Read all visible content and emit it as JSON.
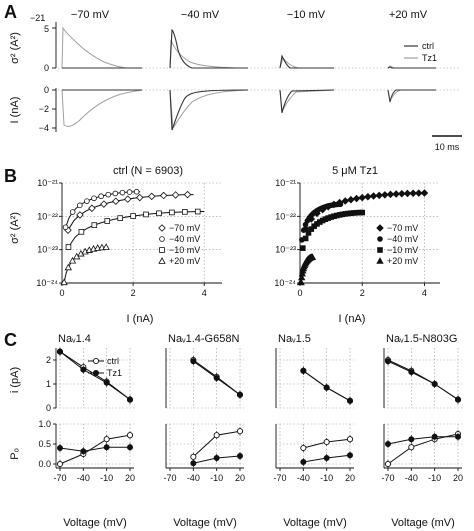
{
  "panel_labels": [
    "A",
    "B",
    "C"
  ],
  "panelA": {
    "voltages": [
      "−70 mV",
      "−40 mV",
      "−10 mV",
      "+20 mV"
    ],
    "ylabel_var": "σ² (A²)",
    "ylabel_cur": "I (nA)",
    "var_ticks": [
      "5",
      "0"
    ],
    "var_exp": "−21",
    "cur_ticks": [
      "0",
      "−2",
      "−4"
    ],
    "legend": [
      "ctrl",
      "Tz1"
    ],
    "scale_bar": "10 ms"
  },
  "panelB": {
    "left_title": "ctrl (N = 6903)",
    "right_title": "5 μM Tz1",
    "xlabel": "I (nA)",
    "ylabel": "σ² (A²)",
    "x_ticks": [
      "0",
      "2",
      "4"
    ],
    "y_ticks": [
      "10⁻²¹",
      "10⁻²²",
      "10⁻²³",
      "10⁻²⁴"
    ],
    "legend": [
      "−70 mV",
      "−40 mV",
      "−10 mV",
      "+20 mV"
    ]
  },
  "panelC": {
    "titles": [
      "Naᵥ1.4",
      "Naᵥ1.4-G658N",
      "Naᵥ1.5",
      "Naᵥ1.5-N803G"
    ],
    "ylabel_top": "i (pA)",
    "ylabel_bottom": "Pₒ",
    "xlabel": "Voltage (mV)",
    "x_ticks": [
      "-70",
      "-40",
      "-10",
      "20"
    ],
    "y_top_ticks": [
      "2",
      "1",
      "0"
    ],
    "y_bottom_ticks": [
      "1.0",
      "0.5",
      "0.0"
    ],
    "legend": [
      "ctrl",
      "Tz1"
    ]
  },
  "colors": {
    "ctrl_trace": "#333333",
    "tz1_trace": "#a0a0a0",
    "fit": "#111111"
  },
  "chart_data": [
    {
      "type": "line",
      "panel": "C",
      "xlabel": "Voltage (mV)",
      "x": [
        -70,
        -40,
        -10,
        20
      ],
      "subplots": [
        {
          "title": "Naᵥ1.4",
          "i_pA": {
            "ctrl": [
              2.35,
              1.7,
              1.1,
              0.35
            ],
            "tz1": [
              2.35,
              1.6,
              1.05,
              0.35
            ]
          },
          "Po": {
            "ctrl": [
              0.0,
              0.25,
              0.62,
              0.72
            ],
            "tz1": [
              0.4,
              0.32,
              0.42,
              0.42
            ]
          }
        },
        {
          "title": "Naᵥ1.4-G658N",
          "i_pA": {
            "ctrl": [
              null,
              2.0,
              1.3,
              0.55
            ],
            "tz1": [
              null,
              1.95,
              1.25,
              0.55
            ]
          },
          "Po": {
            "ctrl": [
              null,
              0.18,
              0.72,
              0.82
            ],
            "tz1": [
              null,
              0.02,
              0.15,
              0.2
            ]
          }
        },
        {
          "title": "Naᵥ1.5",
          "i_pA": {
            "ctrl": [
              null,
              1.55,
              0.85,
              0.3
            ],
            "tz1": [
              null,
              1.55,
              0.85,
              0.3
            ]
          },
          "Po": {
            "ctrl": [
              null,
              0.4,
              0.55,
              0.62
            ],
            "tz1": [
              null,
              0.05,
              0.15,
              0.22
            ]
          }
        },
        {
          "title": "Naᵥ1.5-N803G",
          "i_pA": {
            "ctrl": [
              2.0,
              1.55,
              1.0,
              0.35
            ],
            "tz1": [
              1.95,
              1.5,
              1.0,
              0.35
            ]
          },
          "Po": {
            "ctrl": [
              0.0,
              0.42,
              0.62,
              0.75
            ],
            "tz1": [
              0.5,
              0.62,
              0.68,
              0.68
            ]
          }
        }
      ]
    },
    {
      "type": "scatter",
      "panel": "B",
      "xlabel": "I (nA)",
      "ylabel": "σ² (A²)",
      "yscale": "log",
      "ylim": [
        1e-24,
        1e-21
      ],
      "xlim": [
        0,
        4.5
      ],
      "series": [
        {
          "name": "−70 mV",
          "ctrl_fit": {
            "peak_I": 3.7,
            "peak_var": 4.5e-22
          },
          "tz1_fit": {
            "peak_I": 4.0,
            "peak_var": 5e-22
          }
        },
        {
          "name": "−40 mV",
          "ctrl_fit": {
            "peak_I": 2.2,
            "peak_var": 5.5e-22
          },
          "tz1_fit": {
            "peak_I": 1.3,
            "peak_var": 2.3e-22
          }
        },
        {
          "name": "−10 mV",
          "ctrl_fit": {
            "peak_I": 4.0,
            "peak_var": 1.4e-22
          },
          "tz1_fit": {
            "peak_I": 2.0,
            "peak_var": 1.3e-22
          }
        },
        {
          "name": "+20 mV",
          "ctrl_fit": {
            "peak_I": 1.3,
            "peak_var": 1.2e-23
          },
          "tz1_fit": {
            "peak_I": 0.4,
            "peak_var": 6e-24
          }
        }
      ]
    }
  ]
}
